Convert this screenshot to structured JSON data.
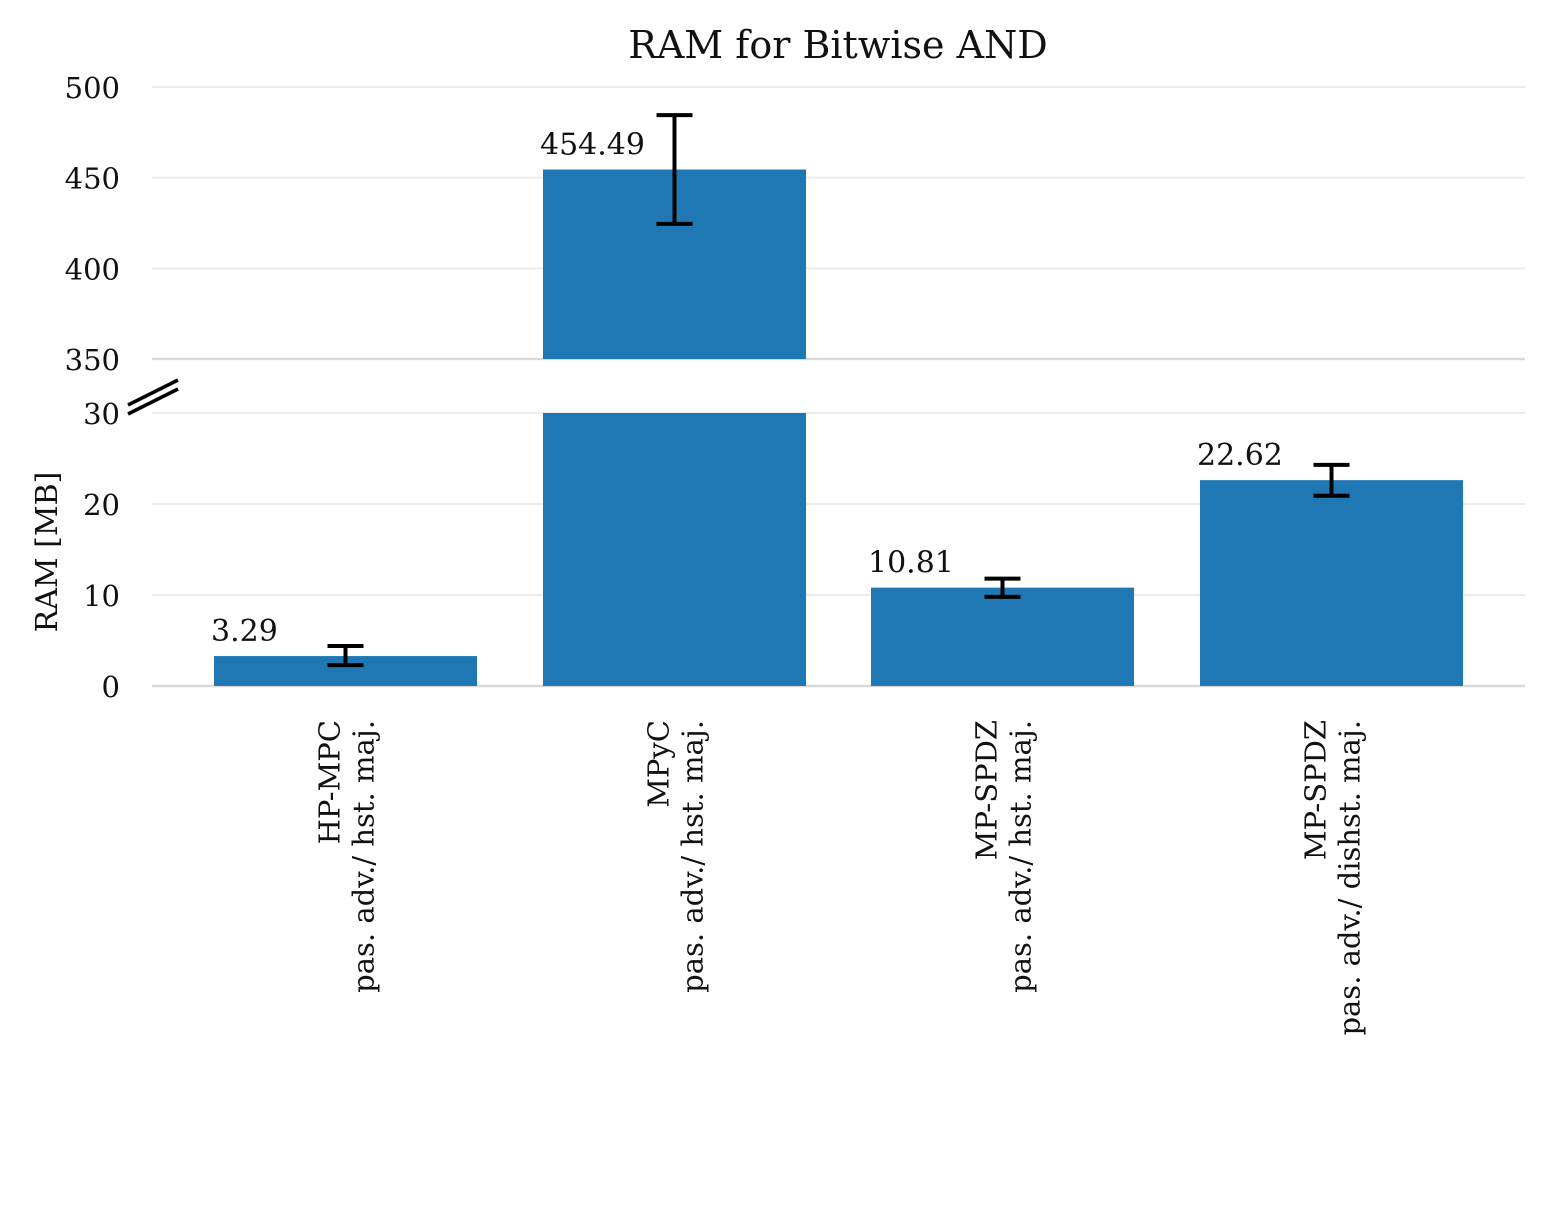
{
  "chart_data": {
    "type": "bar",
    "title": "RAM for Bitwise AND",
    "ylabel": "RAM [MB]",
    "xlabel": "",
    "axis_break": true,
    "lower_axis": {
      "ylim": [
        0,
        30
      ],
      "ticks": [
        0,
        10,
        20,
        30
      ]
    },
    "upper_axis": {
      "ylim": [
        350,
        500
      ],
      "ticks": [
        350,
        400,
        450,
        500
      ]
    },
    "grid": true,
    "colors": {
      "bar": "#1f77b4",
      "grid": "#ebebeb",
      "axis": "#d9d9d9",
      "error": "#000000"
    },
    "categories": [
      {
        "line1": "HP-MPC",
        "line2": "pas. adv./ hst. maj."
      },
      {
        "line1": "MPyC",
        "line2": "pas. adv./ hst. maj."
      },
      {
        "line1": "MP-SPDZ",
        "line2": "pas. adv./ hst. maj."
      },
      {
        "line1": "MP-SPDZ",
        "line2": "pas. adv./ dishst. maj."
      }
    ],
    "values": [
      3.29,
      454.49,
      10.81,
      22.62
    ],
    "value_labels": [
      "3.29",
      "454.49",
      "10.81",
      "22.62"
    ],
    "error_low": [
      2.3,
      424.5,
      9.8,
      20.9
    ],
    "error_high": [
      4.4,
      484.5,
      11.8,
      24.3
    ]
  }
}
